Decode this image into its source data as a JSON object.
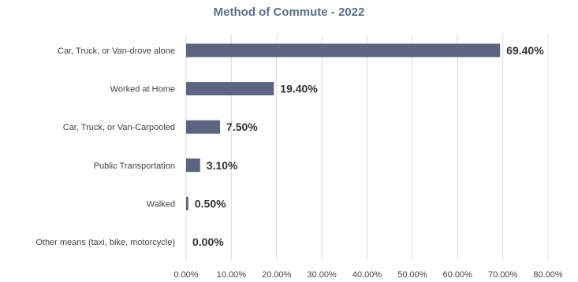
{
  "colors": {
    "bar": "#5b6582",
    "title": "#5a6f8c",
    "grid": "#dcdcdc",
    "category_text": "#444444",
    "value_text": "#333333",
    "tick_text": "#444444"
  },
  "chart_data": {
    "type": "bar",
    "orientation": "horizontal",
    "title": "Method of Commute - 2022",
    "xlabel": "",
    "ylabel": "",
    "categories": [
      "Car, Truck, or Van-drove alone",
      "Worked at Home",
      "Car, Truck, or Van-Carpooled",
      "Public Transportation",
      "Walked",
      "Other means (taxi, bike, motorcycle)"
    ],
    "values": [
      69.4,
      19.4,
      7.5,
      3.1,
      0.5,
      0.0
    ],
    "value_labels": [
      "69.40%",
      "19.40%",
      "7.50%",
      "3.10%",
      "0.50%",
      "0.00%"
    ],
    "xlim": [
      0,
      80
    ],
    "xticks": [
      0,
      10,
      20,
      30,
      40,
      50,
      60,
      70,
      80
    ],
    "xtick_labels": [
      "0.00%",
      "10.00%",
      "20.00%",
      "30.00%",
      "40.00%",
      "50.00%",
      "60.00%",
      "70.00%",
      "80.00%"
    ],
    "grid": true,
    "legend": "none"
  }
}
